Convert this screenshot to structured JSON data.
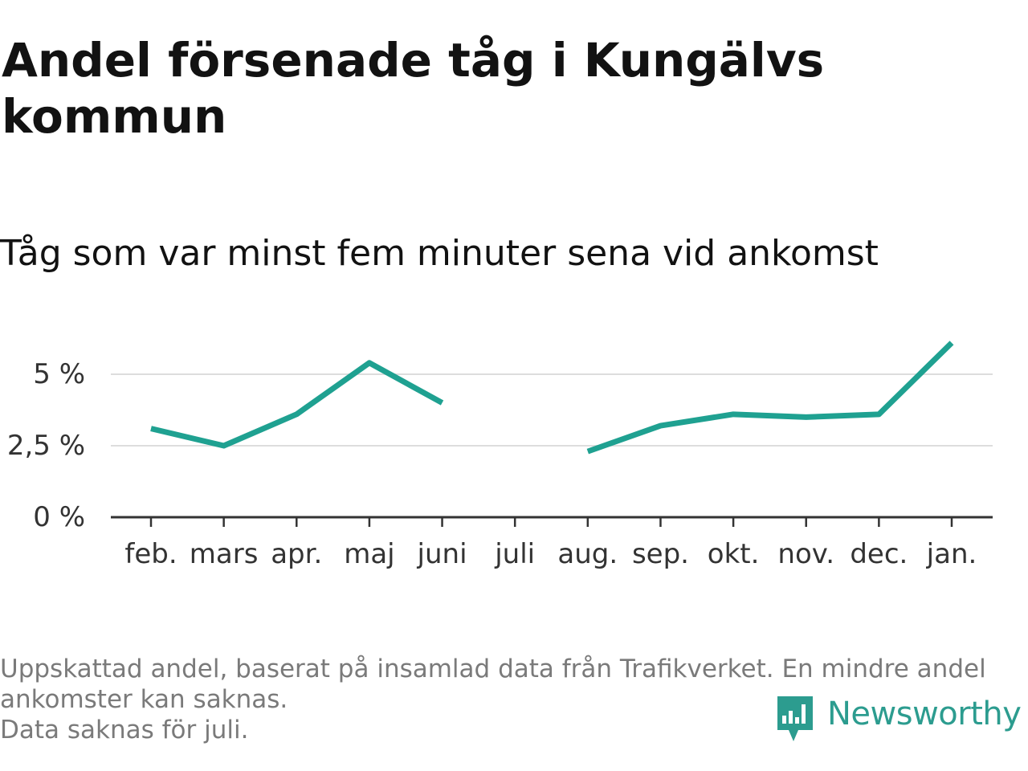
{
  "header": {
    "title": "Andel försenade tåg i Kungälvs kommun",
    "subtitle": "Tåg som var minst fem minuter sena vid ankomst"
  },
  "footer": {
    "note_lines": [
      "Uppskattad andel, baserat på insamlad data från Trafikverket. En mindre andel ankomster kan saknas.",
      "Data saknas för juli."
    ],
    "brand_name": "Newsworthy"
  },
  "colors": {
    "line": "#1fa191",
    "grid": "#dddddd",
    "axis": "#333333",
    "brand": "#2c9c8f"
  },
  "icons": {
    "brand_logo": "bar-chart-speech-bubble-icon"
  },
  "chart_data": {
    "type": "line",
    "categories": [
      "feb.",
      "mars",
      "apr.",
      "maj",
      "juni",
      "juli",
      "aug.",
      "sep.",
      "okt.",
      "nov.",
      "dec.",
      "jan."
    ],
    "series": [
      {
        "values": [
          3.1,
          2.5,
          3.6,
          5.4,
          4.0,
          null,
          2.3,
          3.2,
          3.6,
          3.5,
          3.6,
          6.1
        ]
      }
    ],
    "ylim": [
      0,
      6.2
    ],
    "yticks": [
      0,
      2.5,
      5
    ],
    "ytick_labels": [
      "0 %",
      "2,5 %",
      "5 %"
    ],
    "xlabel": "",
    "ylabel": "",
    "grid": true,
    "legend": "none"
  }
}
